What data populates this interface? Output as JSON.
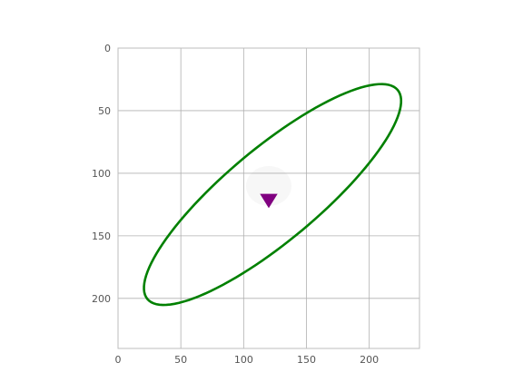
{
  "chart_data": {
    "type": "scatter",
    "title": "",
    "xlabel": "",
    "ylabel": "",
    "xlim": [
      0,
      240
    ],
    "ylim": [
      240,
      0
    ],
    "y_inverted": true,
    "grid": true,
    "x_ticks": [
      0,
      50,
      100,
      150,
      200
    ],
    "y_ticks": [
      0,
      50,
      100,
      150,
      200
    ],
    "x_tick_labels": [
      "0",
      "50",
      "100",
      "150",
      "200"
    ],
    "y_tick_labels": [
      "0",
      "50",
      "100",
      "150",
      "200"
    ],
    "background_image": "faint grayscale image, nearly white",
    "ellipse": {
      "center": [
        123,
        117
      ],
      "semi_major": 130,
      "semi_minor": 37,
      "angle_deg": -40,
      "color": "#008000"
    },
    "marker": {
      "x": 120,
      "y": 121,
      "shape": "triangle-down",
      "color": "#800080"
    }
  }
}
